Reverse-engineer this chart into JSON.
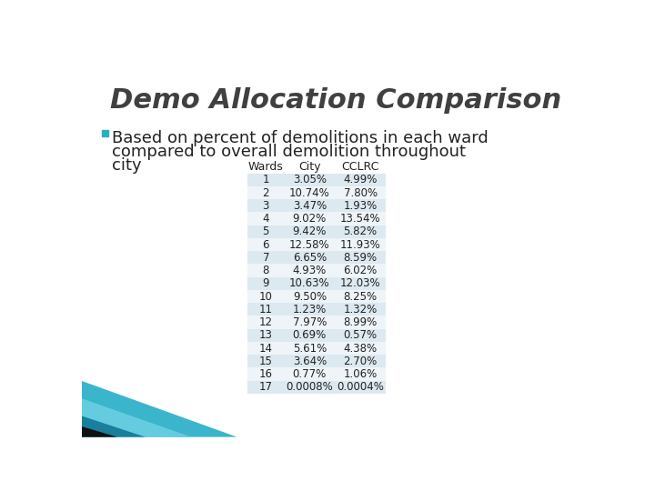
{
  "title": "Demo Allocation Comparison",
  "bullet_line1": "□ Based on percent of demolitions in each ward",
  "bullet_line2": "   compared to overall demolition throughout",
  "bullet_line3": "   city",
  "table_headers": [
    "Wards",
    "City",
    "CCLRC"
  ],
  "table_data": [
    [
      "1",
      "3.05%",
      "4.99%"
    ],
    [
      "2",
      "10.74%",
      "7.80%"
    ],
    [
      "3",
      "3.47%",
      "1.93%"
    ],
    [
      "4",
      "9.02%",
      "13.54%"
    ],
    [
      "5",
      "9.42%",
      "5.82%"
    ],
    [
      "6",
      "12.58%",
      "11.93%"
    ],
    [
      "7",
      "6.65%",
      "8.59%"
    ],
    [
      "8",
      "4.93%",
      "6.02%"
    ],
    [
      "9",
      "10.63%",
      "12.03%"
    ],
    [
      "10",
      "9.50%",
      "8.25%"
    ],
    [
      "11",
      "1.23%",
      "1.32%"
    ],
    [
      "12",
      "7.97%",
      "8.99%"
    ],
    [
      "13",
      "0.69%",
      "0.57%"
    ],
    [
      "14",
      "5.61%",
      "4.38%"
    ],
    [
      "15",
      "3.64%",
      "2.70%"
    ],
    [
      "16",
      "0.77%",
      "1.06%"
    ],
    [
      "17",
      "0.0008%",
      "0.0004%"
    ]
  ],
  "bg_color": "#ffffff",
  "title_color": "#404040",
  "bullet_color": "#222222",
  "bullet_square_color": "#29aec7",
  "table_row_odd": "#dde9f0",
  "table_row_even": "#eef4f8",
  "table_header_bg": "#ffffff",
  "table_header_color": "#222222",
  "table_text_color": "#222222",
  "title_fontsize": 22,
  "bullet_fontsize": 13,
  "table_fontsize": 8.5,
  "table_header_fontsize": 9,
  "teal_dark": "#1a7f9c",
  "teal_mid": "#3ab5cc",
  "teal_light": "#65cce0",
  "black_stripe": "#111111"
}
